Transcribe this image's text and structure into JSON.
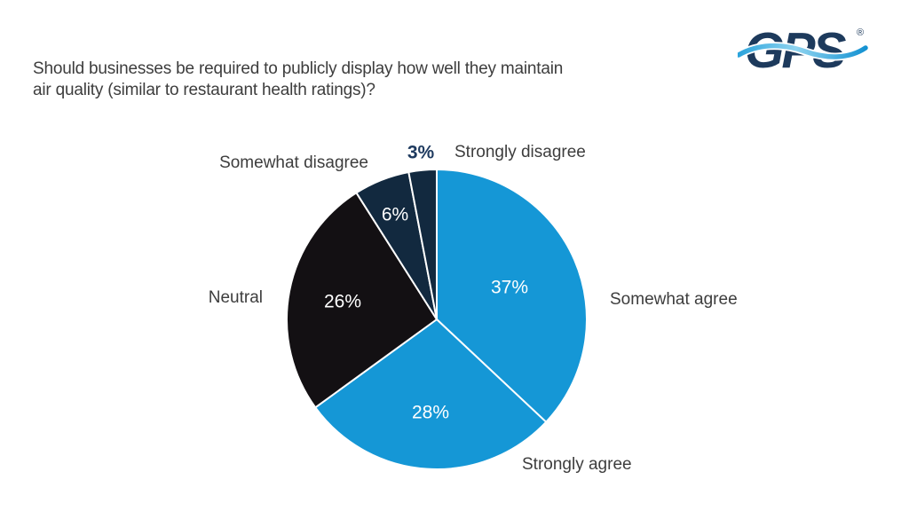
{
  "header": {
    "title_line1": "Should businesses be required to publicly display how well they maintain",
    "title_line2": "air quality (similar to restaurant health ratings)?"
  },
  "logo": {
    "text": "GPS",
    "registered_mark": "®",
    "navy": "#1d3a5c",
    "wave_blue_left": "#2ba4dc",
    "wave_blue_mid": "#8fd4f0",
    "wave_blue_right": "#1492d2"
  },
  "chart_data": {
    "type": "pie",
    "title": "Should businesses be required to publicly display how well they maintain air quality (similar to restaurant health ratings)?",
    "unit": "percent",
    "start_angle_deg": 0,
    "direction": "clockwise",
    "total": 100,
    "slice_border_color": "#ffffff",
    "label_text_color": "#3d3d3d",
    "slices": [
      {
        "label": "Somewhat agree",
        "value": 37,
        "display_value": "37%",
        "color": "#1597d6",
        "value_label_color": "#ffffff",
        "value_label_inside": true
      },
      {
        "label": "Strongly agree",
        "value": 28,
        "display_value": "28%",
        "color": "#1597d6",
        "value_label_color": "#ffffff",
        "value_label_inside": true
      },
      {
        "label": "Neutral",
        "value": 26,
        "display_value": "26%",
        "color": "#131013",
        "value_label_color": "#ffffff",
        "value_label_inside": true
      },
      {
        "label": "Somewhat disagree",
        "value": 6,
        "display_value": "6%",
        "color": "#12293f",
        "value_label_color": "#ffffff",
        "value_label_inside": true
      },
      {
        "label": "Strongly disagree",
        "value": 3,
        "display_value": "3%",
        "color": "#12293f",
        "value_label_color": "#1e3a5f",
        "value_label_inside": false
      }
    ]
  }
}
